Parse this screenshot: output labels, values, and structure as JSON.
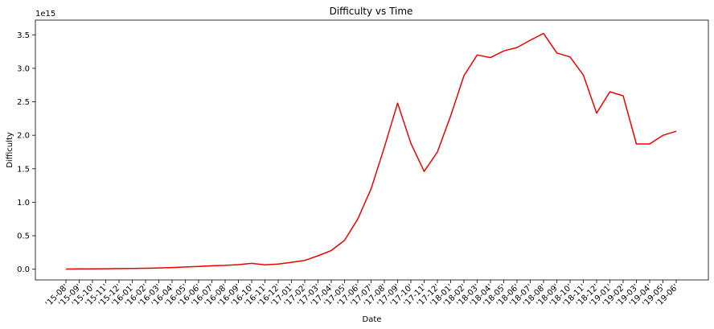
{
  "chart_data": {
    "type": "line",
    "title": "Difficulty vs Time",
    "xlabel": "Date",
    "ylabel": "Difficulty",
    "y_scale_label": "1e15",
    "x": [
      "'15-08'",
      "'15-09'",
      "'15-10'",
      "'15-11'",
      "'15-12'",
      "'16-01'",
      "'16-02'",
      "'16-03'",
      "'16-04'",
      "'16-05'",
      "'16-06'",
      "'16-07'",
      "'16-08'",
      "'16-09'",
      "'16-10'",
      "'16-11'",
      "'16-12'",
      "'17-01'",
      "'17-02'",
      "'17-03'",
      "'17-04'",
      "'17-05'",
      "'17-06'",
      "'17-07'",
      "'17-08'",
      "'17-09'",
      "'17-10'",
      "'17-11'",
      "'17-12'",
      "'18-01'",
      "'18-02'",
      "'18-03'",
      "'18-04'",
      "'18-05'",
      "'18-06'",
      "'18-07'",
      "'18-08'",
      "'18-09'",
      "'18-10'",
      "'18-11'",
      "'18-12'",
      "'19-01'",
      "'19-02'",
      "'19-03'",
      "'19-04'",
      "'19-05'",
      "'19-06'"
    ],
    "series": [
      {
        "color": "#ee0000",
        "values": [
          0.002,
          0.004,
          0.005,
          0.007,
          0.009,
          0.011,
          0.014,
          0.019,
          0.025,
          0.033,
          0.042,
          0.052,
          0.057,
          0.068,
          0.087,
          0.065,
          0.078,
          0.103,
          0.132,
          0.2,
          0.28,
          0.43,
          0.75,
          1.2,
          1.82,
          2.48,
          1.88,
          1.46,
          1.75,
          2.29,
          2.89,
          3.2,
          3.16,
          3.26,
          3.31,
          3.42,
          3.52,
          3.23,
          3.17,
          2.9,
          2.33,
          2.65,
          2.59,
          1.87,
          1.87,
          2.0,
          2.06
        ]
      }
    ],
    "yticks": [
      "0.0",
      "0.5",
      "1.0",
      "1.5",
      "2.0",
      "2.5",
      "3.0",
      "3.5"
    ],
    "ylim": [
      -0.16,
      3.72
    ],
    "grid": false
  }
}
